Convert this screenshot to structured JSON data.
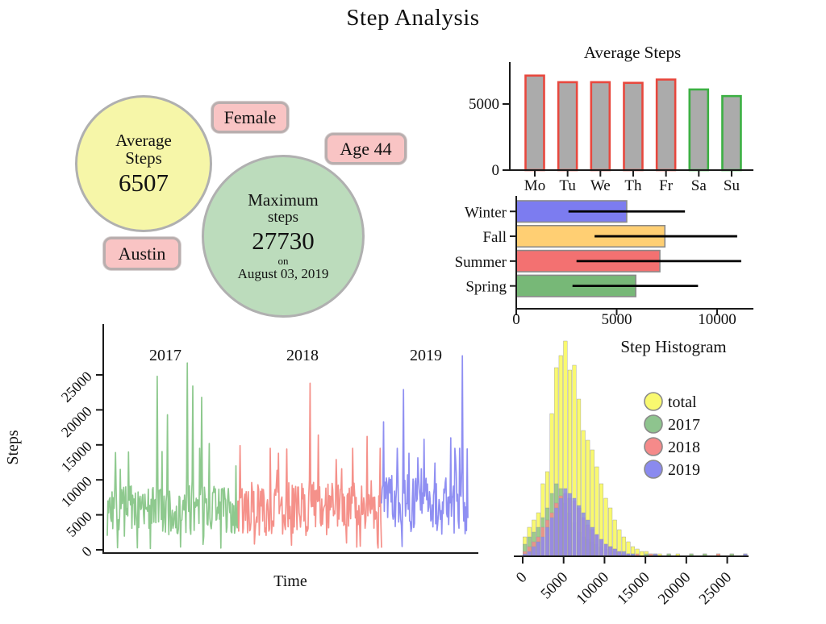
{
  "title": "Step Analysis",
  "info": {
    "avg_circle": {
      "label_line1": "Average",
      "label_line2": "Steps",
      "value": "6507",
      "fill": "#f6f6a8"
    },
    "max_circle": {
      "label_line1": "Maximum",
      "label_line2": "steps",
      "value": "27730",
      "on_label": "on",
      "date": "August 03, 2019",
      "fill": "#bcdcbc"
    },
    "pills": [
      {
        "id": "gender",
        "label": "Female"
      },
      {
        "id": "age",
        "label": "Age 44"
      },
      {
        "id": "city",
        "label": "Austin"
      }
    ],
    "pill_fill": "#f9c4c4"
  },
  "chart_data": [
    {
      "id": "avg-steps-by-weekday",
      "type": "bar",
      "title": "Average Steps",
      "categories": [
        "Mo",
        "Tu",
        "We",
        "Th",
        "Fr",
        "Sa",
        "Su"
      ],
      "values": [
        7150,
        6650,
        6650,
        6600,
        6850,
        6100,
        5600
      ],
      "bar_fill": "#ababab",
      "edge_colors": [
        "#e8483e",
        "#e8483e",
        "#e8483e",
        "#e8483e",
        "#e8483e",
        "#3cb043",
        "#3cb043"
      ],
      "yticks": [
        0,
        5000
      ],
      "ylim": [
        0,
        7800
      ],
      "grid": false
    },
    {
      "id": "avg-steps-by-season",
      "type": "bar-horizontal",
      "categories": [
        "Winter",
        "Fall",
        "Summer",
        "Spring"
      ],
      "values": [
        5500,
        7400,
        7150,
        5950
      ],
      "error_low": [
        2600,
        3900,
        3000,
        2800
      ],
      "error_high": [
        8400,
        11000,
        11200,
        9050
      ],
      "colors": [
        "#7c7cf0",
        "#ffcf73",
        "#f37171",
        "#77b877"
      ],
      "edge_color": "#8a8a8a",
      "error_color": "#000000",
      "xticks": [
        0,
        5000,
        10000
      ],
      "xlim": [
        0,
        14700
      ],
      "grid": false
    },
    {
      "id": "steps-timeseries",
      "type": "line",
      "title": "",
      "xlabel": "Time",
      "ylabel": "Steps",
      "yticks": [
        0,
        5000,
        10000,
        15000,
        20000,
        25000
      ],
      "ylim": [
        0,
        31000
      ],
      "annotations": [
        "2017",
        "2018",
        "2019"
      ],
      "seed": 7,
      "series": [
        {
          "name": "2017",
          "color": "#8ec98e",
          "x0": 133,
          "x1": 295,
          "mean": 5800,
          "spikes": [
            [
              0.1,
              11500
            ],
            [
              0.38,
              24800
            ],
            [
              0.46,
              19300
            ],
            [
              0.615,
              26700
            ],
            [
              0.655,
              23400
            ],
            [
              0.72,
              21800
            ],
            [
              0.78,
              15200
            ]
          ],
          "dips": [
            [
              0.08,
              300
            ],
            [
              0.33,
              200
            ],
            [
              0.56,
              400
            ],
            [
              0.87,
              250
            ]
          ]
        },
        {
          "name": "2018",
          "color": "#f5918a",
          "x0": 295,
          "x1": 473,
          "mean": 6100,
          "spikes": [
            [
              0.015,
              14900
            ],
            [
              0.28,
              13800
            ],
            [
              0.34,
              14400
            ],
            [
              0.5,
              23800
            ],
            [
              0.56,
              16400
            ],
            [
              0.685,
              12900
            ],
            [
              0.8,
              14500
            ],
            [
              0.9,
              16200
            ]
          ],
          "dips": [
            [
              0.975,
              250
            ]
          ]
        },
        {
          "name": "2019",
          "color": "#8f8ff2",
          "x0": 473,
          "x1": 580,
          "mean": 6600,
          "spikes": [
            [
              0.02,
              18300
            ],
            [
              0.25,
              22900
            ],
            [
              0.32,
              13800
            ],
            [
              0.49,
              15800
            ],
            [
              0.62,
              12400
            ],
            [
              0.8,
              16000
            ],
            [
              0.86,
              13200
            ],
            [
              0.935,
              27730
            ]
          ],
          "dips": [
            [
              0.97,
              2300
            ]
          ]
        }
      ]
    },
    {
      "id": "step-histogram",
      "type": "histogram",
      "title": "Step Histogram",
      "bin_width": 550,
      "xticks": [
        0,
        5000,
        10000,
        15000,
        20000,
        25000
      ],
      "legend": [
        "total",
        "2017",
        "2018",
        "2019"
      ],
      "legend_stroke": "#8a8a8a",
      "series": [
        {
          "name": "total",
          "color": "#f9f96f",
          "counts": [
            8,
            12,
            15,
            18,
            30,
            35,
            59,
            78,
            83,
            89,
            77,
            79,
            65,
            52,
            48,
            44,
            37,
            30,
            24,
            20,
            15,
            11,
            8,
            6,
            4,
            3,
            2,
            2,
            1,
            1,
            1,
            0,
            1,
            0,
            1,
            0,
            0,
            1,
            0,
            0,
            1,
            0,
            0,
            1,
            0,
            0,
            1,
            0,
            0,
            1
          ]
        },
        {
          "name": "2017",
          "color": "#8ec48e",
          "counts": [
            5,
            8,
            10,
            12,
            16,
            20,
            26,
            30,
            28,
            22,
            18,
            14,
            10,
            8,
            7,
            6,
            5,
            4,
            3,
            2,
            2,
            1,
            1,
            1,
            1,
            0,
            0,
            1,
            0,
            0,
            0,
            0,
            1,
            0,
            0,
            0,
            0,
            1,
            0,
            0,
            1,
            0,
            0,
            0,
            0,
            0,
            1,
            0,
            0,
            0
          ]
        },
        {
          "name": "2018",
          "color": "#f58a8a",
          "counts": [
            2,
            4,
            6,
            8,
            12,
            15,
            18,
            22,
            25,
            26,
            24,
            23,
            20,
            16,
            13,
            11,
            9,
            7,
            5,
            4,
            3,
            2,
            1,
            1,
            0,
            1,
            0,
            0,
            1,
            0,
            0,
            0,
            0,
            0,
            0,
            0,
            0,
            0,
            0,
            0,
            0,
            0,
            0,
            1,
            0,
            0,
            0,
            0,
            0,
            0
          ]
        },
        {
          "name": "2019",
          "color": "#8a8aef",
          "counts": [
            1,
            2,
            4,
            6,
            8,
            12,
            16,
            20,
            24,
            28,
            26,
            24,
            21,
            18,
            15,
            12,
            9,
            7,
            5,
            4,
            3,
            2,
            2,
            1,
            1,
            0,
            0,
            0,
            0,
            1,
            0,
            0,
            0,
            0,
            0,
            0,
            0,
            0,
            0,
            0,
            0,
            0,
            0,
            0,
            0,
            0,
            0,
            0,
            0,
            1
          ]
        }
      ]
    }
  ]
}
